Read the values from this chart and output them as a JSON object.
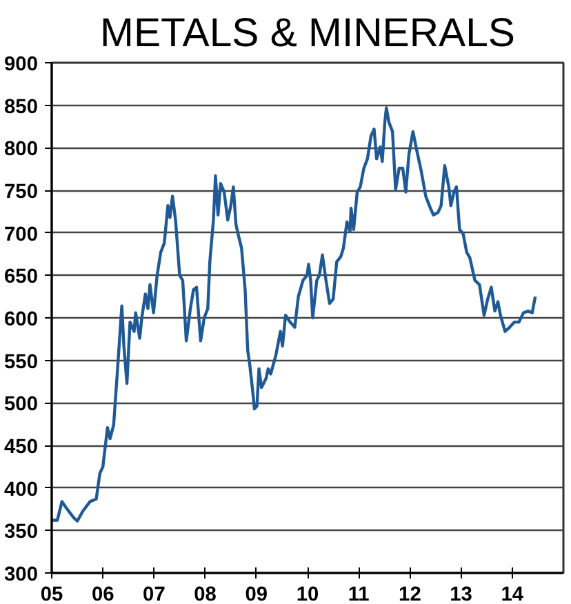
{
  "chart_data": {
    "type": "line",
    "title": "METALS & MINERALS",
    "x": [
      2005.0,
      2005.11,
      2005.2,
      2005.29,
      2005.43,
      2005.5,
      2005.61,
      2005.75,
      2005.87,
      2005.94,
      2006.0,
      2006.09,
      2006.14,
      2006.21,
      2006.28,
      2006.37,
      2006.41,
      2006.47,
      2006.53,
      2006.61,
      2006.64,
      2006.72,
      2006.76,
      2006.83,
      2006.88,
      2006.92,
      2006.99,
      2007.06,
      2007.13,
      2007.2,
      2007.27,
      2007.31,
      2007.36,
      2007.42,
      2007.5,
      2007.56,
      2007.63,
      2007.71,
      2007.77,
      2007.83,
      2007.91,
      2007.98,
      2008.05,
      2008.09,
      2008.16,
      2008.2,
      2008.25,
      2008.3,
      2008.37,
      2008.44,
      2008.5,
      2008.55,
      2008.6,
      2008.64,
      2008.71,
      2008.78,
      2008.83,
      2008.87,
      2008.94,
      2008.96,
      2009.01,
      2009.05,
      2009.1,
      2009.19,
      2009.23,
      2009.28,
      2009.33,
      2009.38,
      2009.47,
      2009.51,
      2009.57,
      2009.66,
      2009.75,
      2009.82,
      2009.91,
      2009.99,
      2010.02,
      2010.06,
      2010.1,
      2010.18,
      2010.23,
      2010.29,
      2010.36,
      2010.43,
      2010.5,
      2010.57,
      2010.65,
      2010.7,
      2010.77,
      2010.83,
      2010.85,
      2010.9,
      2010.97,
      2011.03,
      2011.1,
      2011.17,
      2011.24,
      2011.3,
      2011.35,
      2011.42,
      2011.46,
      2011.51,
      2011.54,
      2011.59,
      2011.66,
      2011.72,
      2011.79,
      2011.86,
      2011.92,
      2011.98,
      2012.06,
      2012.13,
      2012.22,
      2012.31,
      2012.4,
      2012.46,
      2012.55,
      2012.61,
      2012.68,
      2012.76,
      2012.8,
      2012.86,
      2012.91,
      2012.97,
      2013.04,
      2013.11,
      2013.17,
      2013.27,
      2013.36,
      2013.45,
      2013.52,
      2013.59,
      2013.66,
      2013.72,
      2013.77,
      2013.86,
      2013.95,
      2014.04,
      2014.13,
      2014.22,
      2014.31,
      2014.39,
      2014.45
    ],
    "series": [
      {
        "color": "#1f5a96",
        "values": [
          362,
          362,
          384,
          376,
          365,
          361,
          373,
          384,
          387,
          417,
          425,
          471,
          458,
          474,
          534,
          614,
          567,
          523,
          595,
          584,
          606,
          576,
          600,
          628,
          611,
          639,
          606,
          650,
          677,
          688,
          732,
          718,
          743,
          715,
          650,
          644,
          573,
          611,
          633,
          636,
          573,
          600,
          611,
          666,
          715,
          767,
          721,
          758,
          748,
          715,
          732,
          754,
          710,
          699,
          682,
          633,
          562,
          545,
          507,
          493,
          496,
          540,
          518,
          529,
          540,
          534,
          545,
          556,
          584,
          567,
          603,
          595,
          589,
          625,
          644,
          650,
          663,
          644,
          600,
          644,
          650,
          674,
          644,
          617,
          622,
          666,
          672,
          682,
          713,
          702,
          729,
          704,
          748,
          754,
          776,
          787,
          814,
          822,
          787,
          801,
          784,
          830,
          847,
          830,
          819,
          751,
          776,
          776,
          748,
          792,
          819,
          798,
          773,
          743,
          729,
          721,
          724,
          732,
          779,
          754,
          732,
          748,
          754,
          704,
          699,
          677,
          671,
          644,
          639,
          603,
          622,
          636,
          608,
          619,
          603,
          584,
          589,
          595,
          595,
          606,
          608,
          606,
          625
        ]
      }
    ],
    "xlim": [
      2005,
      2015
    ],
    "xticks": [
      {
        "value": 2005,
        "label": "05"
      },
      {
        "value": 2006,
        "label": "06"
      },
      {
        "value": 2007,
        "label": "07"
      },
      {
        "value": 2008,
        "label": "08"
      },
      {
        "value": 2009,
        "label": "09"
      },
      {
        "value": 2010,
        "label": "10"
      },
      {
        "value": 2011,
        "label": "11"
      },
      {
        "value": 2012,
        "label": "12"
      },
      {
        "value": 2013,
        "label": "13"
      },
      {
        "value": 2014,
        "label": "14"
      }
    ],
    "ylim": [
      300,
      900
    ],
    "yticks": [
      300,
      350,
      400,
      450,
      500,
      550,
      600,
      650,
      700,
      750,
      800,
      850,
      900
    ],
    "grid": "y",
    "line_style": "solid"
  }
}
